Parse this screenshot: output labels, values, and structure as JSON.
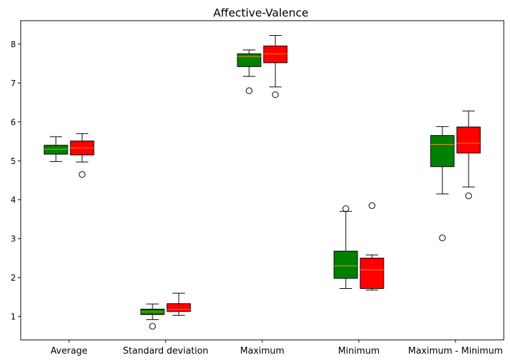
{
  "chart_data": {
    "type": "boxplot",
    "title": "Affective-Valence",
    "xlabel": "",
    "ylabel": "",
    "ylim": [
      0.4,
      8.6
    ],
    "yticks": [
      1,
      2,
      3,
      4,
      5,
      6,
      7,
      8
    ],
    "grid": false,
    "legend": "none",
    "colors": {
      "group_a": "#008000",
      "group_b": "#ff0000",
      "median": "#ff8c00",
      "outline": "#000000"
    },
    "categories": [
      "Average",
      "Standard deviation",
      "Maximum",
      "Minimum",
      "Maximum - Minimum"
    ],
    "groups": [
      {
        "category": "Average",
        "boxes": [
          {
            "color": "group_a",
            "whisker_low": 4.98,
            "q1": 5.17,
            "median": 5.3,
            "q3": 5.4,
            "whisker_high": 5.62,
            "outliers": []
          },
          {
            "color": "group_b",
            "whisker_low": 4.97,
            "q1": 5.15,
            "median": 5.33,
            "q3": 5.51,
            "whisker_high": 5.7,
            "outliers": [
              4.65
            ]
          }
        ]
      },
      {
        "category": "Standard deviation",
        "boxes": [
          {
            "color": "group_a",
            "whisker_low": 0.92,
            "q1": 1.05,
            "median": 1.12,
            "q3": 1.19,
            "whisker_high": 1.32,
            "outliers": [
              0.75
            ]
          },
          {
            "color": "group_b",
            "whisker_low": 1.03,
            "q1": 1.13,
            "median": 1.18,
            "q3": 1.33,
            "whisker_high": 1.6,
            "outliers": []
          }
        ]
      },
      {
        "category": "Maximum",
        "boxes": [
          {
            "color": "group_a",
            "whisker_low": 7.17,
            "q1": 7.42,
            "median": 7.68,
            "q3": 7.75,
            "whisker_high": 7.85,
            "outliers": [
              6.8
            ]
          },
          {
            "color": "group_b",
            "whisker_low": 6.9,
            "q1": 7.52,
            "median": 7.75,
            "q3": 7.95,
            "whisker_high": 8.22,
            "outliers": [
              6.7
            ]
          }
        ]
      },
      {
        "category": "Minimum",
        "boxes": [
          {
            "color": "group_a",
            "whisker_low": 1.72,
            "q1": 1.98,
            "median": 2.3,
            "q3": 2.68,
            "whisker_high": 3.7,
            "outliers": [
              3.77
            ]
          },
          {
            "color": "group_b",
            "whisker_low": 1.68,
            "q1": 1.72,
            "median": 2.2,
            "q3": 2.5,
            "whisker_high": 2.58,
            "outliers": [
              3.85
            ]
          }
        ]
      },
      {
        "category": "Maximum - Minimum",
        "boxes": [
          {
            "color": "group_a",
            "whisker_low": 4.15,
            "q1": 4.85,
            "median": 5.42,
            "q3": 5.65,
            "whisker_high": 5.88,
            "outliers": [
              3.02
            ]
          },
          {
            "color": "group_b",
            "whisker_low": 4.33,
            "q1": 5.2,
            "median": 5.45,
            "q3": 5.87,
            "whisker_high": 6.28,
            "outliers": [
              4.1
            ]
          }
        ]
      }
    ]
  }
}
